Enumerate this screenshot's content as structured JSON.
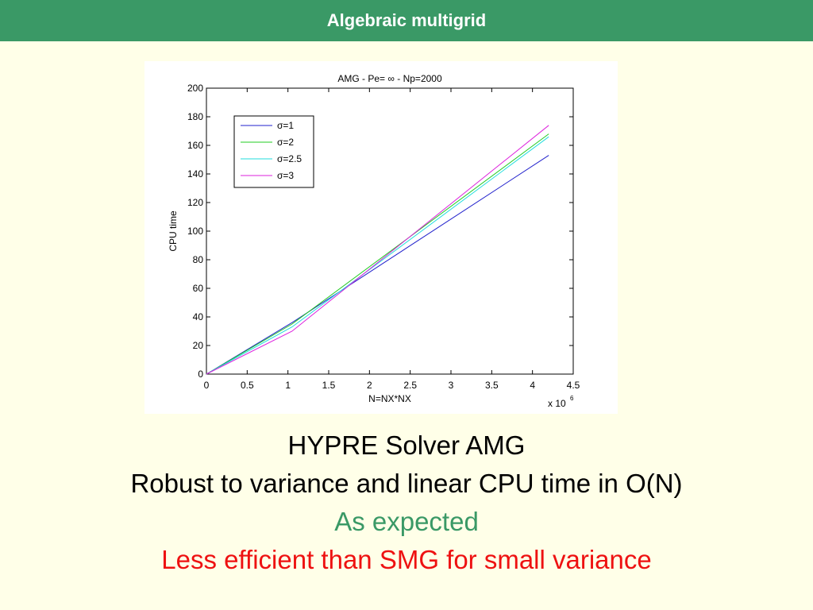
{
  "slide": {
    "title": "Algebraic multigrid"
  },
  "caption": {
    "line1": "HYPRE Solver AMG",
    "line2": "Robust to variance and linear CPU time in O(N)",
    "line3": "As expected",
    "line4": "Less efficient than SMG for small variance"
  },
  "colors": {
    "title_bar": "#3a9966",
    "accent_green_text": "#3a9966",
    "accent_red_text": "#ee1111",
    "background": "#ffffe8"
  },
  "chart_data": {
    "type": "line",
    "title": "AMG - Pe= ∞ - Np=2000",
    "xlabel": "N=NX*NX",
    "ylabel": "CPU time",
    "x_multiplier": "x 10",
    "x_multiplier_exponent": "6",
    "xlim": [
      0,
      4.5
    ],
    "ylim": [
      0,
      200
    ],
    "xticks": [
      0,
      0.5,
      1,
      1.5,
      2,
      2.5,
      3,
      3.5,
      4,
      4.5
    ],
    "xtick_labels": [
      "0",
      "0.5",
      "1",
      "1.5",
      "2",
      "2.5",
      "3",
      "3.5",
      "4",
      "4.5"
    ],
    "yticks": [
      0,
      20,
      40,
      60,
      80,
      100,
      120,
      140,
      160,
      180,
      200
    ],
    "ytick_labels": [
      "0",
      "20",
      "40",
      "60",
      "80",
      "100",
      "120",
      "140",
      "160",
      "180",
      "200"
    ],
    "grid": false,
    "legend_position": "top-left",
    "series": [
      {
        "name": "σ=1",
        "color": "#2222cc",
        "x": [
          0,
          1.05,
          4.2
        ],
        "y": [
          0,
          36,
          153
        ]
      },
      {
        "name": "σ=2",
        "color": "#22cc22",
        "x": [
          0,
          1.05,
          4.2
        ],
        "y": [
          0,
          35,
          168
        ]
      },
      {
        "name": "σ=2.5",
        "color": "#22dddd",
        "x": [
          0,
          1.05,
          4.2
        ],
        "y": [
          0,
          33,
          166
        ]
      },
      {
        "name": "σ=3",
        "color": "#dd22dd",
        "x": [
          0,
          1.05,
          4.2
        ],
        "y": [
          0,
          30,
          174
        ]
      }
    ]
  }
}
